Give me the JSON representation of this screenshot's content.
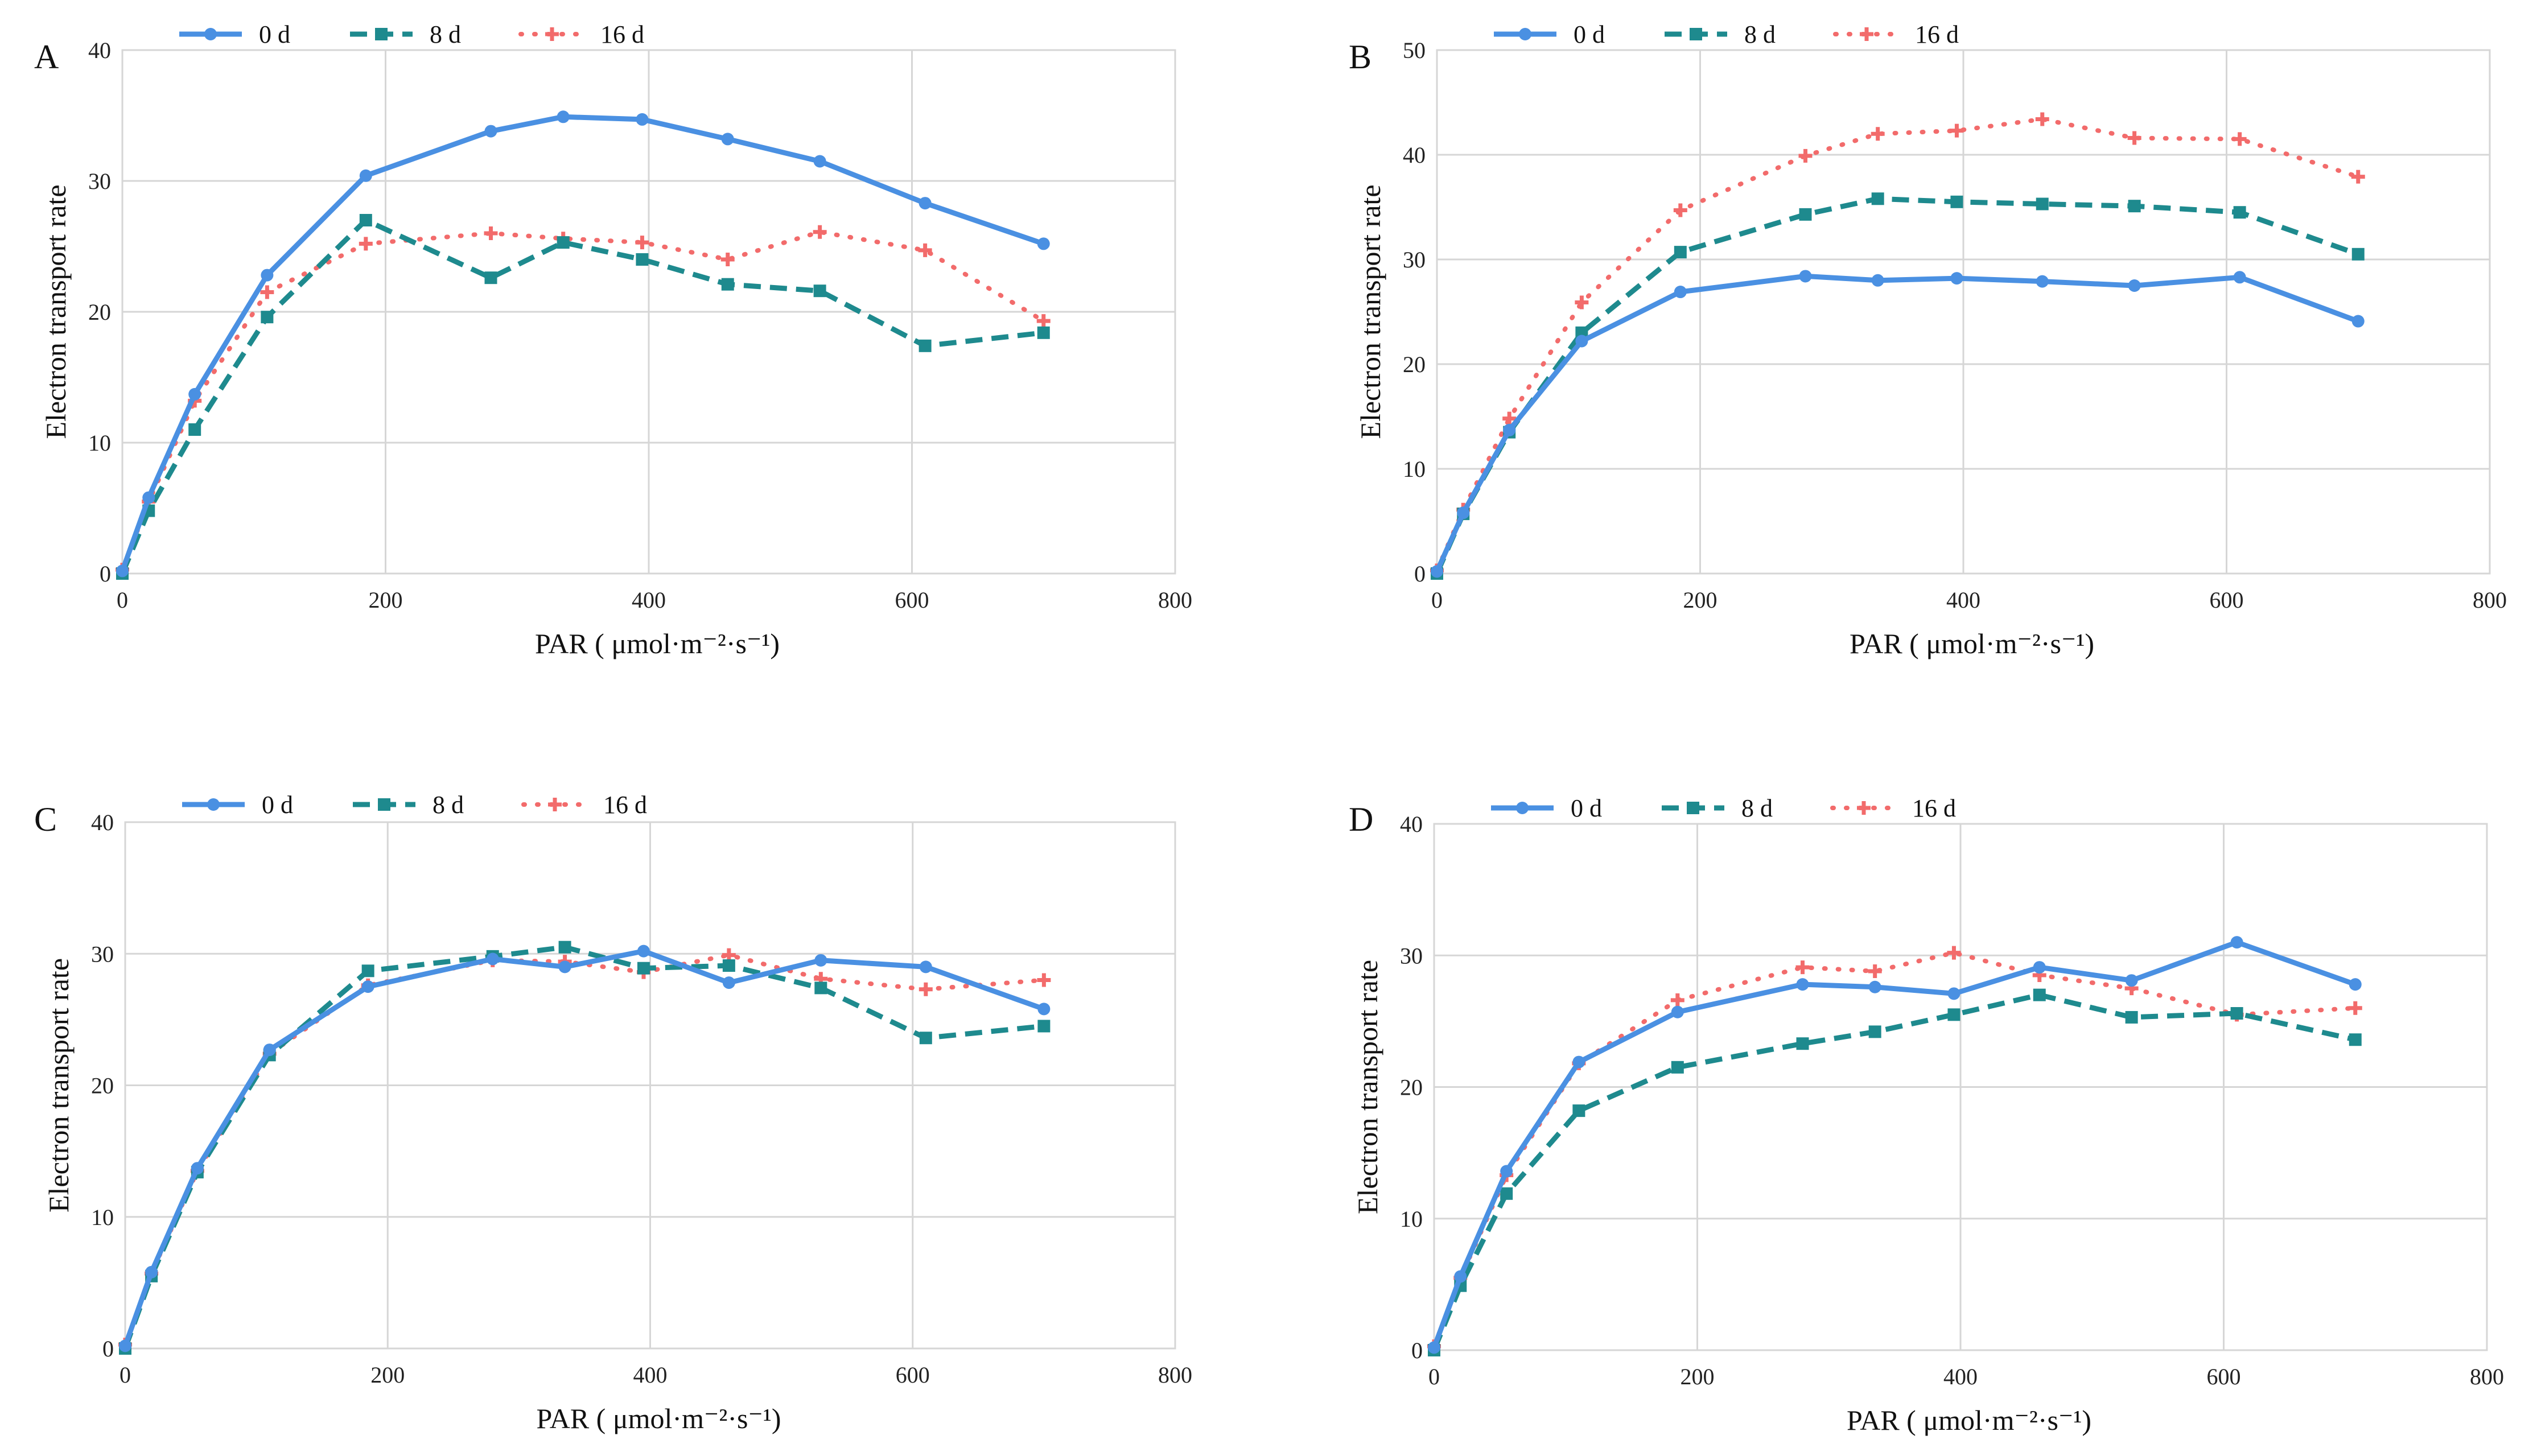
{
  "chart_data": [
    {
      "type": "line",
      "panel": "A",
      "xlabel": "PAR ( μmol·m⁻²·s⁻¹)",
      "ylabel": "Electron transport rate",
      "xlim": [
        0,
        800
      ],
      "ylim": [
        0,
        40
      ],
      "xticks": [
        0,
        200,
        400,
        600,
        800
      ],
      "yticks": [
        0,
        10,
        20,
        30,
        40
      ],
      "x": [
        0,
        20,
        55,
        110,
        185,
        280,
        335,
        395,
        460,
        530,
        610,
        700
      ],
      "series": [
        {
          "name": "0 d",
          "color": "#4a90e2",
          "marker": "circle",
          "dash": "solid",
          "values": [
            0.2,
            5.8,
            13.7,
            22.8,
            30.4,
            33.8,
            34.9,
            34.7,
            33.2,
            31.5,
            28.3,
            25.2
          ]
        },
        {
          "name": "8 d",
          "color": "#1e8a8e",
          "marker": "square",
          "dash": "dashed",
          "values": [
            0.0,
            4.8,
            11.0,
            19.6,
            27.0,
            22.6,
            25.3,
            24.0,
            22.1,
            21.6,
            17.4,
            18.4
          ]
        },
        {
          "name": "16 d",
          "color": "#f26b6b",
          "marker": "plus",
          "dash": "dotted",
          "values": [
            0.3,
            5.5,
            13.2,
            21.5,
            25.2,
            26.0,
            25.6,
            25.3,
            24.0,
            26.1,
            24.7,
            19.3
          ]
        }
      ]
    },
    {
      "type": "line",
      "panel": "B",
      "xlabel": "PAR ( μmol·m⁻²·s⁻¹)",
      "ylabel": "Electron transport rate",
      "xlim": [
        0,
        800
      ],
      "ylim": [
        0,
        50
      ],
      "xticks": [
        0,
        200,
        400,
        600,
        800
      ],
      "yticks": [
        0,
        10,
        20,
        30,
        40,
        50
      ],
      "x": [
        0,
        20,
        55,
        110,
        185,
        280,
        335,
        395,
        460,
        530,
        610,
        700
      ],
      "series": [
        {
          "name": "0 d",
          "color": "#4a90e2",
          "marker": "circle",
          "dash": "solid",
          "values": [
            0.2,
            5.8,
            13.7,
            22.2,
            26.9,
            28.4,
            28.0,
            28.2,
            27.9,
            27.5,
            28.3,
            24.1
          ]
        },
        {
          "name": "8 d",
          "color": "#1e8a8e",
          "marker": "square",
          "dash": "dashed",
          "values": [
            0.0,
            5.7,
            13.5,
            23.0,
            30.7,
            34.3,
            35.8,
            35.5,
            35.3,
            35.1,
            34.5,
            30.5
          ]
        },
        {
          "name": "16 d",
          "color": "#f26b6b",
          "marker": "plus",
          "dash": "dotted",
          "values": [
            0.3,
            6.1,
            14.8,
            25.9,
            34.7,
            39.9,
            42.0,
            42.3,
            43.4,
            41.6,
            41.5,
            37.9
          ]
        }
      ]
    },
    {
      "type": "line",
      "panel": "C",
      "xlabel": "PAR ( μmol·m⁻²·s⁻¹)",
      "ylabel": "Electron transport rate",
      "xlim": [
        0,
        800
      ],
      "ylim": [
        0,
        40
      ],
      "xticks": [
        0,
        200,
        400,
        600,
        800
      ],
      "yticks": [
        0,
        10,
        20,
        30,
        40
      ],
      "x": [
        0,
        20,
        55,
        110,
        185,
        280,
        335,
        395,
        460,
        530,
        610,
        700
      ],
      "series": [
        {
          "name": "0 d",
          "color": "#4a90e2",
          "marker": "circle",
          "dash": "solid",
          "values": [
            0.2,
            5.8,
            13.7,
            22.7,
            27.5,
            29.6,
            29.0,
            30.2,
            27.8,
            29.5,
            29.0,
            25.8
          ]
        },
        {
          "name": "8 d",
          "color": "#1e8a8e",
          "marker": "square",
          "dash": "dashed",
          "values": [
            0.0,
            5.5,
            13.4,
            22.3,
            28.7,
            29.8,
            30.5,
            28.9,
            29.1,
            27.4,
            23.6,
            24.5
          ]
        },
        {
          "name": "16 d",
          "color": "#f26b6b",
          "marker": "plus",
          "dash": "dotted",
          "values": [
            0.3,
            5.7,
            13.5,
            22.4,
            27.6,
            29.5,
            29.4,
            28.6,
            29.9,
            28.1,
            27.3,
            28.0
          ]
        }
      ]
    },
    {
      "type": "line",
      "panel": "D",
      "xlabel": "PAR ( μmol·m⁻²·s⁻¹)",
      "ylabel": "Electron transport rate",
      "xlim": [
        0,
        800
      ],
      "ylim": [
        0,
        40
      ],
      "xticks": [
        0,
        200,
        400,
        600,
        800
      ],
      "yticks": [
        0,
        10,
        20,
        30,
        40
      ],
      "x": [
        0,
        20,
        55,
        110,
        185,
        280,
        335,
        395,
        460,
        530,
        610,
        700
      ],
      "series": [
        {
          "name": "0 d",
          "color": "#4a90e2",
          "marker": "circle",
          "dash": "solid",
          "values": [
            0.2,
            5.6,
            13.6,
            21.9,
            25.7,
            27.8,
            27.6,
            27.1,
            29.1,
            28.1,
            31.0,
            27.8
          ]
        },
        {
          "name": "8 d",
          "color": "#1e8a8e",
          "marker": "square",
          "dash": "dashed",
          "values": [
            0.0,
            4.9,
            11.9,
            18.2,
            21.5,
            23.3,
            24.2,
            25.5,
            27.0,
            25.3,
            25.6,
            23.6
          ]
        },
        {
          "name": "16 d",
          "color": "#f26b6b",
          "marker": "plus",
          "dash": "dotted",
          "values": [
            0.3,
            5.5,
            13.3,
            21.8,
            26.6,
            29.1,
            28.8,
            30.2,
            28.5,
            27.5,
            25.5,
            26.0
          ]
        }
      ]
    }
  ]
}
